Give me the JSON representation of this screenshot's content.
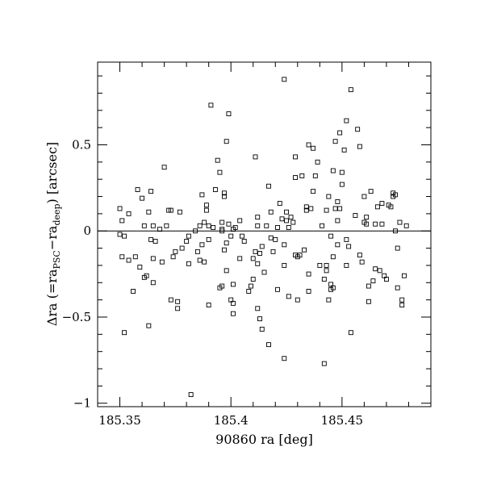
{
  "chart_data": {
    "type": "scatter",
    "title": "",
    "xlabel": "90860 ra [deg]",
    "ylabel": {
      "prefix": "Δra (=ra",
      "sub1": "PSC",
      "mid": "−ra",
      "sub2": "deep",
      "suffix": ") [arcsec]"
    },
    "xlim": [
      185.34,
      185.49
    ],
    "ylim": [
      -1.02,
      0.98
    ],
    "xticks": [
      {
        "value": 185.35,
        "label": "185.35"
      },
      {
        "value": 185.4,
        "label": "185.4"
      },
      {
        "value": 185.45,
        "label": "185.45"
      }
    ],
    "yticks": [
      {
        "value": -1,
        "label": "−1"
      },
      {
        "value": -0.5,
        "label": "−0.5"
      },
      {
        "value": 0,
        "label": "0"
      },
      {
        "value": 0.5,
        "label": "0.5"
      }
    ],
    "xminor_step": 0.01,
    "yminor_step": 0.1,
    "reference_line_y": 0,
    "grid": false,
    "marker": "open-square",
    "points": [
      [
        185.35,
        0.13
      ],
      [
        185.35,
        -0.02
      ],
      [
        185.351,
        0.06
      ],
      [
        185.351,
        -0.15
      ],
      [
        185.352,
        -0.03
      ],
      [
        185.352,
        -0.59
      ],
      [
        185.354,
        -0.17
      ],
      [
        185.354,
        0.1
      ],
      [
        185.356,
        -0.35
      ],
      [
        185.357,
        -0.15
      ],
      [
        185.358,
        0.24
      ],
      [
        185.359,
        -0.21
      ],
      [
        185.36,
        0.19
      ],
      [
        185.361,
        -0.27
      ],
      [
        185.361,
        0.03
      ],
      [
        185.362,
        -0.26
      ],
      [
        185.363,
        -0.55
      ],
      [
        185.363,
        0.11
      ],
      [
        185.364,
        0.23
      ],
      [
        185.364,
        -0.05
      ],
      [
        185.365,
        0.03
      ],
      [
        185.365,
        -0.16
      ],
      [
        185.365,
        -0.3
      ],
      [
        185.366,
        -0.06
      ],
      [
        185.368,
        0.01
      ],
      [
        185.369,
        -0.18
      ],
      [
        185.37,
        0.37
      ],
      [
        185.371,
        0.03
      ],
      [
        185.372,
        0.12
      ],
      [
        185.373,
        -0.4
      ],
      [
        185.373,
        0.12
      ],
      [
        185.374,
        -0.15
      ],
      [
        185.375,
        -0.12
      ],
      [
        185.376,
        -0.45
      ],
      [
        185.376,
        -0.41
      ],
      [
        185.377,
        0.11
      ],
      [
        185.378,
        -0.1
      ],
      [
        185.38,
        -0.06
      ],
      [
        185.381,
        -0.03
      ],
      [
        185.381,
        -0.19
      ],
      [
        185.382,
        -0.95
      ],
      [
        185.384,
        0.0
      ],
      [
        185.385,
        -0.12
      ],
      [
        185.386,
        -0.17
      ],
      [
        185.386,
        0.03
      ],
      [
        185.387,
        0.21
      ],
      [
        185.387,
        -0.08
      ],
      [
        185.388,
        0.05
      ],
      [
        185.388,
        -0.18
      ],
      [
        185.389,
        0.15
      ],
      [
        185.389,
        0.12
      ],
      [
        185.39,
        0.03
      ],
      [
        185.39,
        -0.05
      ],
      [
        185.39,
        -0.43
      ],
      [
        185.391,
        0.73
      ],
      [
        185.392,
        0.02
      ],
      [
        185.393,
        0.24
      ],
      [
        185.394,
        0.41
      ],
      [
        185.395,
        0.34
      ],
      [
        185.395,
        -0.33
      ],
      [
        185.396,
        0.01
      ],
      [
        185.396,
        0.05
      ],
      [
        185.396,
        0.0
      ],
      [
        185.396,
        -0.32
      ],
      [
        185.397,
        0.2
      ],
      [
        185.397,
        0.22
      ],
      [
        185.397,
        -0.11
      ],
      [
        185.398,
        0.52
      ],
      [
        185.398,
        -0.23
      ],
      [
        185.398,
        -0.07
      ],
      [
        185.399,
        0.68
      ],
      [
        185.399,
        0.04
      ],
      [
        185.4,
        -0.03
      ],
      [
        185.4,
        -0.4
      ],
      [
        185.401,
        0.01
      ],
      [
        185.401,
        -0.31
      ],
      [
        185.401,
        -0.42
      ],
      [
        185.401,
        -0.48
      ],
      [
        185.402,
        0.02
      ],
      [
        185.404,
        -0.16
      ],
      [
        185.404,
        0.06
      ],
      [
        185.405,
        -0.03
      ],
      [
        185.406,
        -0.06
      ],
      [
        185.408,
        -0.35
      ],
      [
        185.409,
        -0.32
      ],
      [
        185.41,
        -0.28
      ],
      [
        185.41,
        -0.16
      ],
      [
        185.411,
        0.43
      ],
      [
        185.411,
        -0.12
      ],
      [
        185.412,
        0.03
      ],
      [
        185.412,
        0.08
      ],
      [
        185.412,
        -0.19
      ],
      [
        185.412,
        -0.45
      ],
      [
        185.413,
        -0.51
      ],
      [
        185.413,
        -0.13
      ],
      [
        185.414,
        -0.57
      ],
      [
        185.414,
        -0.09
      ],
      [
        185.415,
        -0.24
      ],
      [
        185.416,
        0.03
      ],
      [
        185.417,
        -0.66
      ],
      [
        185.417,
        0.26
      ],
      [
        185.418,
        -0.04
      ],
      [
        185.418,
        0.11
      ],
      [
        185.419,
        -0.12
      ],
      [
        185.42,
        -0.05
      ],
      [
        185.421,
        -0.34
      ],
      [
        185.421,
        0.02
      ],
      [
        185.422,
        0.16
      ],
      [
        185.423,
        0.07
      ],
      [
        185.424,
        -0.74
      ],
      [
        185.424,
        0.88
      ],
      [
        185.424,
        -0.2
      ],
      [
        185.424,
        -0.08
      ],
      [
        185.425,
        0.11
      ],
      [
        185.425,
        0.06
      ],
      [
        185.426,
        -0.38
      ],
      [
        185.426,
        0.02
      ],
      [
        185.427,
        0.08
      ],
      [
        185.428,
        0.05
      ],
      [
        185.429,
        0.43
      ],
      [
        185.429,
        0.31
      ],
      [
        185.429,
        -0.14
      ],
      [
        185.43,
        -0.15
      ],
      [
        185.43,
        -0.4
      ],
      [
        185.431,
        -0.14
      ],
      [
        185.432,
        0.32
      ],
      [
        185.433,
        -0.11
      ],
      [
        185.434,
        0.14
      ],
      [
        185.434,
        0.12
      ],
      [
        185.435,
        0.5
      ],
      [
        185.435,
        -0.25
      ],
      [
        185.435,
        -0.35
      ],
      [
        185.436,
        0.13
      ],
      [
        185.437,
        0.48
      ],
      [
        185.437,
        0.23
      ],
      [
        185.438,
        0.32
      ],
      [
        185.439,
        0.4
      ],
      [
        185.44,
        -0.2
      ],
      [
        185.441,
        0.03
      ],
      [
        185.442,
        -0.77
      ],
      [
        185.442,
        -0.28
      ],
      [
        185.443,
        -0.23
      ],
      [
        185.443,
        0.12
      ],
      [
        185.443,
        -0.2
      ],
      [
        185.444,
        -0.4
      ],
      [
        185.444,
        0.2
      ],
      [
        185.445,
        -0.03
      ],
      [
        185.445,
        -0.31
      ],
      [
        185.445,
        -0.34
      ],
      [
        185.446,
        -0.15
      ],
      [
        185.446,
        0.35
      ],
      [
        185.446,
        -0.33
      ],
      [
        185.447,
        0.52
      ],
      [
        185.447,
        0.13
      ],
      [
        185.448,
        0.06
      ],
      [
        185.448,
        0.17
      ],
      [
        185.448,
        -0.08
      ],
      [
        185.449,
        0.13
      ],
      [
        185.449,
        0.57
      ],
      [
        185.45,
        0.27
      ],
      [
        185.45,
        0.34
      ],
      [
        185.451,
        0.47
      ],
      [
        185.452,
        0.64
      ],
      [
        185.452,
        -0.05
      ],
      [
        185.452,
        -0.2
      ],
      [
        185.453,
        -0.09
      ],
      [
        185.454,
        0.82
      ],
      [
        185.454,
        -0.59
      ],
      [
        185.456,
        0.09
      ],
      [
        185.457,
        0.59
      ],
      [
        185.458,
        0.49
      ],
      [
        185.458,
        -0.14
      ],
      [
        185.459,
        -0.18
      ],
      [
        185.46,
        0.05
      ],
      [
        185.46,
        0.2
      ],
      [
        185.461,
        0.04
      ],
      [
        185.461,
        0.08
      ],
      [
        185.462,
        -0.32
      ],
      [
        185.462,
        -0.41
      ],
      [
        185.463,
        0.23
      ],
      [
        185.464,
        -0.29
      ],
      [
        185.465,
        -0.22
      ],
      [
        185.465,
        0.04
      ],
      [
        185.466,
        0.14
      ],
      [
        185.467,
        -0.23
      ],
      [
        185.468,
        0.04
      ],
      [
        185.469,
        -0.26
      ],
      [
        185.47,
        -0.28
      ],
      [
        185.471,
        0.15
      ],
      [
        185.472,
        0.14
      ],
      [
        185.473,
        0.22
      ],
      [
        185.474,
        0.0
      ],
      [
        185.474,
        0.21
      ],
      [
        185.475,
        -0.33
      ],
      [
        185.475,
        -0.1
      ],
      [
        185.476,
        0.05
      ],
      [
        185.477,
        -0.43
      ],
      [
        185.477,
        -0.4
      ],
      [
        185.478,
        -0.26
      ],
      [
        185.479,
        0.03
      ],
      [
        185.473,
        0.2
      ],
      [
        185.468,
        0.16
      ]
    ]
  }
}
